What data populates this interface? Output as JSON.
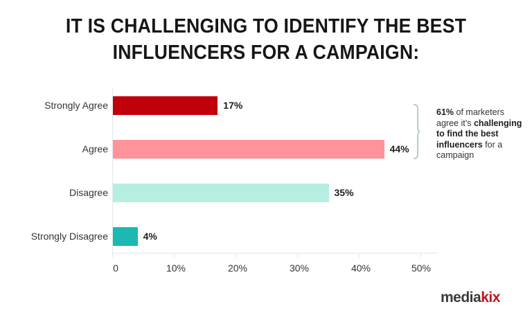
{
  "title": {
    "line1": "IT IS CHALLENGING TO IDENTIFY THE BEST",
    "line2": "INFLUENCERS FOR A CAMPAIGN:"
  },
  "chart_data": {
    "type": "bar",
    "orientation": "horizontal",
    "title": "IT IS CHALLENGING TO IDENTIFY THE BEST INFLUENCERS FOR A CAMPAIGN:",
    "categories": [
      "Strongly Agree",
      "Agree",
      "Disagree",
      "Strongly Disagree"
    ],
    "values": [
      17,
      44,
      35,
      4
    ],
    "value_labels": [
      "17%",
      "44%",
      "35%",
      "4%"
    ],
    "colors": [
      "#c0000b",
      "#ff929b",
      "#b6efe1",
      "#1cb8b2"
    ],
    "xlabel": "",
    "ylabel": "",
    "xlim": [
      0,
      50
    ],
    "xticks": [
      "0",
      "10%",
      "20%",
      "30%",
      "40%",
      "50%"
    ],
    "grid": false,
    "legend": null,
    "annotation": {
      "bracket_covers": [
        "Strongly Agree",
        "Agree"
      ],
      "text_parts": [
        {
          "text": "61%",
          "bold": true
        },
        {
          "text": " of marketers agree it’s ",
          "bold": false
        },
        {
          "text": "challenging to find the best influencers",
          "bold": true
        },
        {
          "text": " for a campaign",
          "bold": false
        }
      ]
    }
  },
  "brand": {
    "logo_part1": "media",
    "logo_part2": "kix",
    "accent": "#c1121f"
  }
}
